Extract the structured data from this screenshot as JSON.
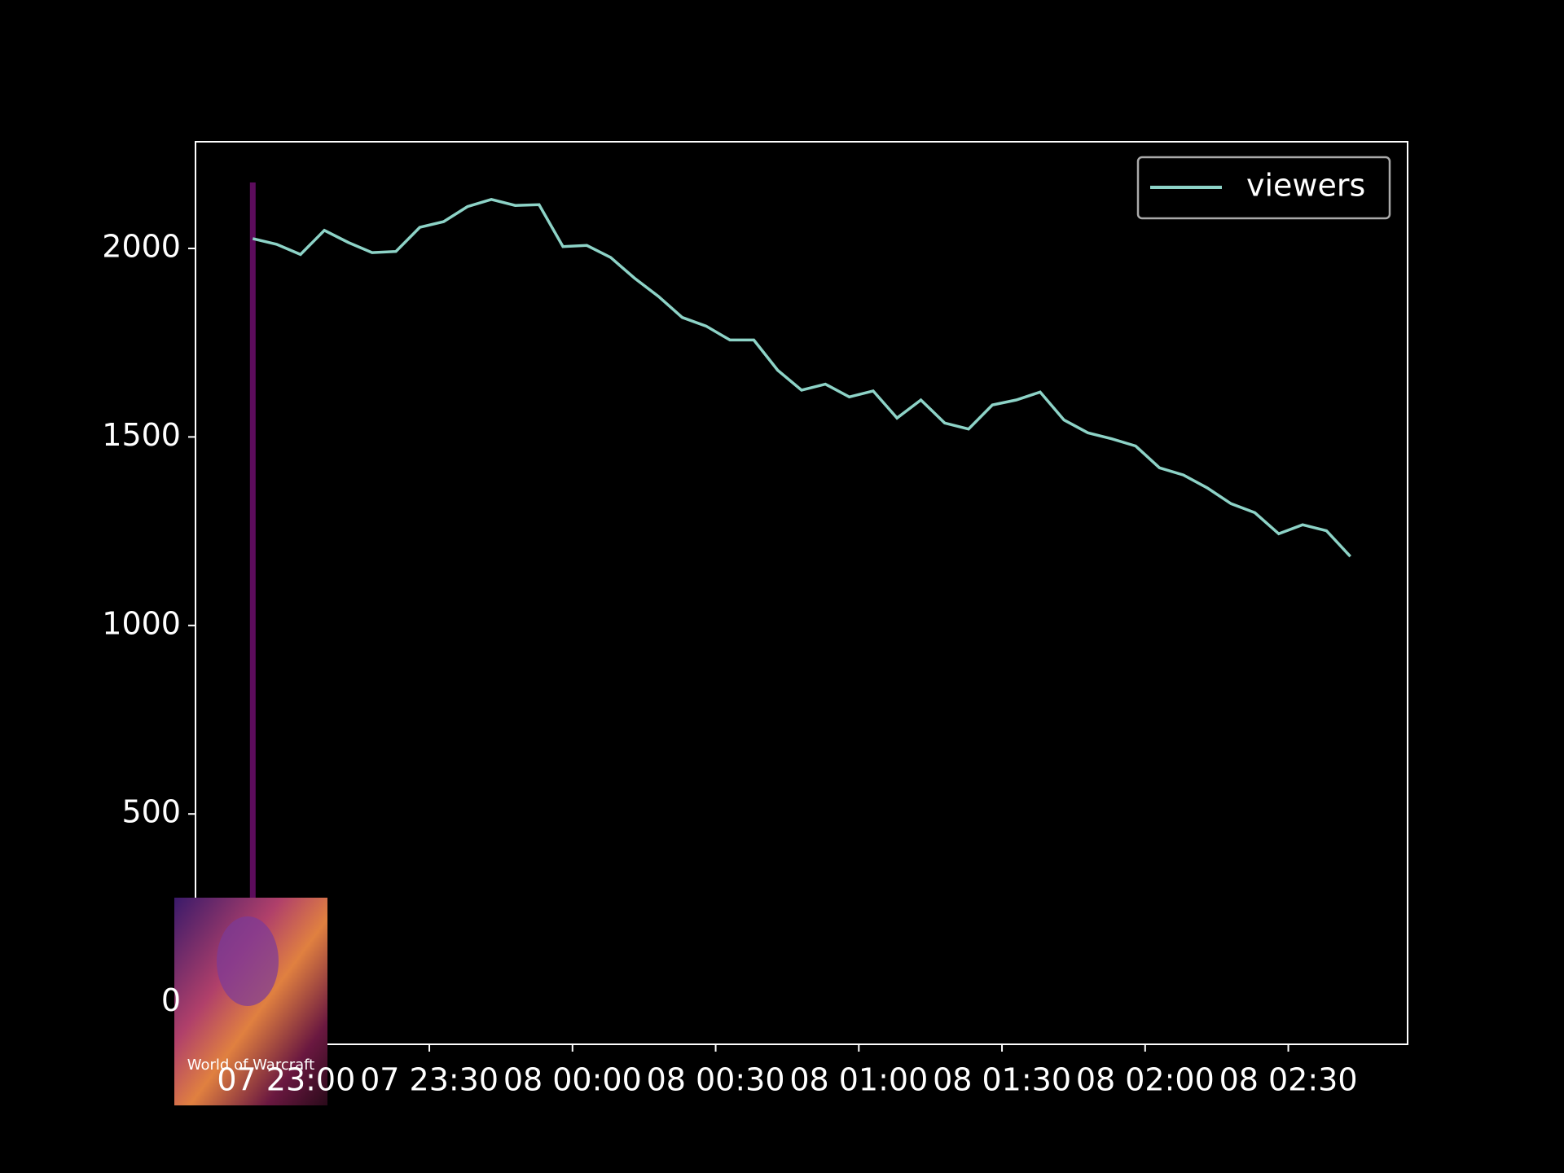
{
  "chart_data": {
    "type": "line",
    "x": [
      "07 22:53",
      "07 22:58",
      "07 23:03",
      "07 23:08",
      "07 23:13",
      "07 23:18",
      "07 23:23",
      "07 23:28",
      "07 23:33",
      "07 23:38",
      "07 23:43",
      "07 23:48",
      "07 23:53",
      "07 23:58",
      "08 00:03",
      "08 00:08",
      "08 00:13",
      "08 00:18",
      "08 00:23",
      "08 00:28",
      "08 00:33",
      "08 00:38",
      "08 00:43",
      "08 00:48",
      "08 00:53",
      "08 00:58",
      "08 01:03",
      "08 01:08",
      "08 01:13",
      "08 01:18",
      "08 01:23",
      "08 01:28",
      "08 01:33",
      "08 01:38",
      "08 01:43",
      "08 01:48",
      "08 01:53",
      "08 01:58",
      "08 02:03",
      "08 02:08",
      "08 02:13",
      "08 02:18",
      "08 02:23",
      "08 02:28",
      "08 02:33",
      "08 02:38",
      "08 02:43"
    ],
    "series": [
      {
        "name": "viewers",
        "color": "#8dd3c7",
        "values": [
          2026,
          2011,
          1984,
          2048,
          2016,
          1989,
          1992,
          2056,
          2071,
          2111,
          2130,
          2114,
          2116,
          2005,
          2008,
          1976,
          1921,
          1873,
          1817,
          1794,
          1757,
          1757,
          1677,
          1624,
          1640,
          1606,
          1622,
          1550,
          1598,
          1537,
          1521,
          1585,
          1598,
          1619,
          1545,
          1511,
          1495,
          1476,
          1418,
          1399,
          1365,
          1323,
          1299,
          1243,
          1267,
          1251,
          1183
        ]
      }
    ],
    "vline": {
      "x": "07 22:53",
      "y": [
        0,
        2175
      ],
      "color": "#5c0c5c"
    },
    "annotation": "World of Warcraft",
    "xlim": [
      "07 22:41",
      "08 02:55"
    ],
    "xticks": [
      "07 23:00",
      "07 23:30",
      "08 00:00",
      "08 00:30",
      "08 01:00",
      "08 01:30",
      "08 02:00",
      "08 02:30"
    ],
    "ylim": [
      -111,
      2283
    ],
    "yticks": [
      0,
      500,
      1000,
      1500,
      2000
    ],
    "legend": "upper right"
  }
}
